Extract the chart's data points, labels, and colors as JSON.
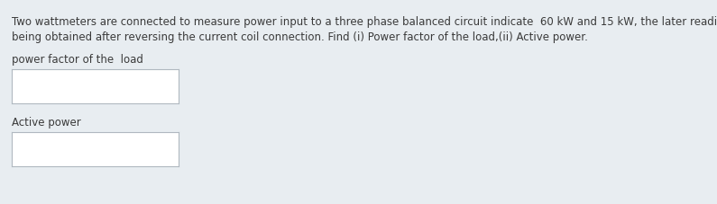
{
  "background_color": "#e8edf1",
  "text_line1": "Two wattmeters are connected to measure power input to a three phase balanced circuit indicate  60 kW and 15 kW, the later reading",
  "text_line2": "being obtained after reversing the current coil connection. Find (i) Power factor of the load,(ii) Active power.",
  "label1": "power factor of the  load",
  "label2": "Active power",
  "text_color": "#3a3a3a",
  "box_face_color": "#ffffff",
  "box_edge_color": "#b0b8c0",
  "font_size_main": 8.5,
  "font_size_label": 8.5,
  "fig_width": 7.95,
  "fig_height": 2.28,
  "dpi": 100
}
